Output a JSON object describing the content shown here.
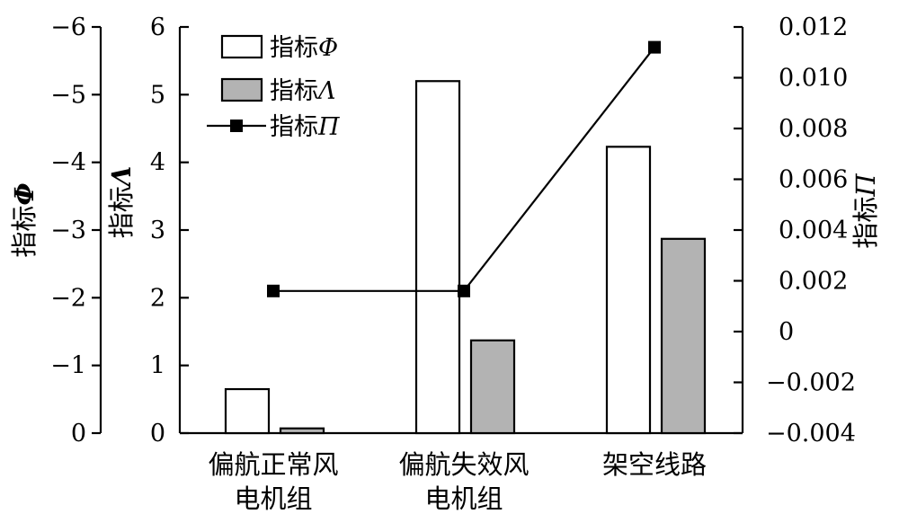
{
  "chart_data": {
    "type": "bar",
    "categories": [
      [
        "偏航正常风",
        "电机组"
      ],
      [
        "偏航失效风",
        "电机组"
      ],
      [
        "架空线路"
      ]
    ],
    "series": [
      {
        "name": "指标",
        "symbol": "Φ",
        "kind": "bar",
        "axis": "phi",
        "values": [
          -0.65,
          -5.2,
          -4.23
        ],
        "color": "#ffffff"
      },
      {
        "name": "指标",
        "symbol": "Λ",
        "kind": "bar",
        "axis": "lambda",
        "values": [
          0.07,
          1.37,
          2.87
        ],
        "color": "#b3b3b3"
      },
      {
        "name": "指标",
        "symbol": "Π",
        "kind": "line",
        "axis": "pi",
        "values": [
          0.0016,
          0.0016,
          0.0112
        ],
        "color": "#000000"
      }
    ],
    "axes": {
      "phi": {
        "label": "指标",
        "symbol": "Φ",
        "range": [
          0,
          -6
        ],
        "ticks": [
          0,
          -1,
          -2,
          -3,
          -4,
          -5,
          -6
        ],
        "tick_labels": [
          "0",
          "−1",
          "−2",
          "−3",
          "−4",
          "−5",
          "−6"
        ]
      },
      "lambda": {
        "label": "指标",
        "symbol": "Λ",
        "range": [
          0,
          6
        ],
        "ticks": [
          0,
          1,
          2,
          3,
          4,
          5,
          6
        ],
        "tick_labels": [
          "0",
          "1",
          "2",
          "3",
          "4",
          "5",
          "6"
        ]
      },
      "pi": {
        "label": "指标",
        "symbol": "Π",
        "range": [
          -0.004,
          0.012
        ],
        "ticks": [
          -0.004,
          -0.002,
          0,
          0.002,
          0.004,
          0.006,
          0.008,
          0.01,
          0.012
        ],
        "tick_labels": [
          "−0.004",
          "−0.002",
          "0",
          "0.002",
          "0.004",
          "0.006",
          "0.008",
          "0.010",
          "0.012"
        ]
      }
    },
    "legend_position": "top-left",
    "grid": false
  }
}
